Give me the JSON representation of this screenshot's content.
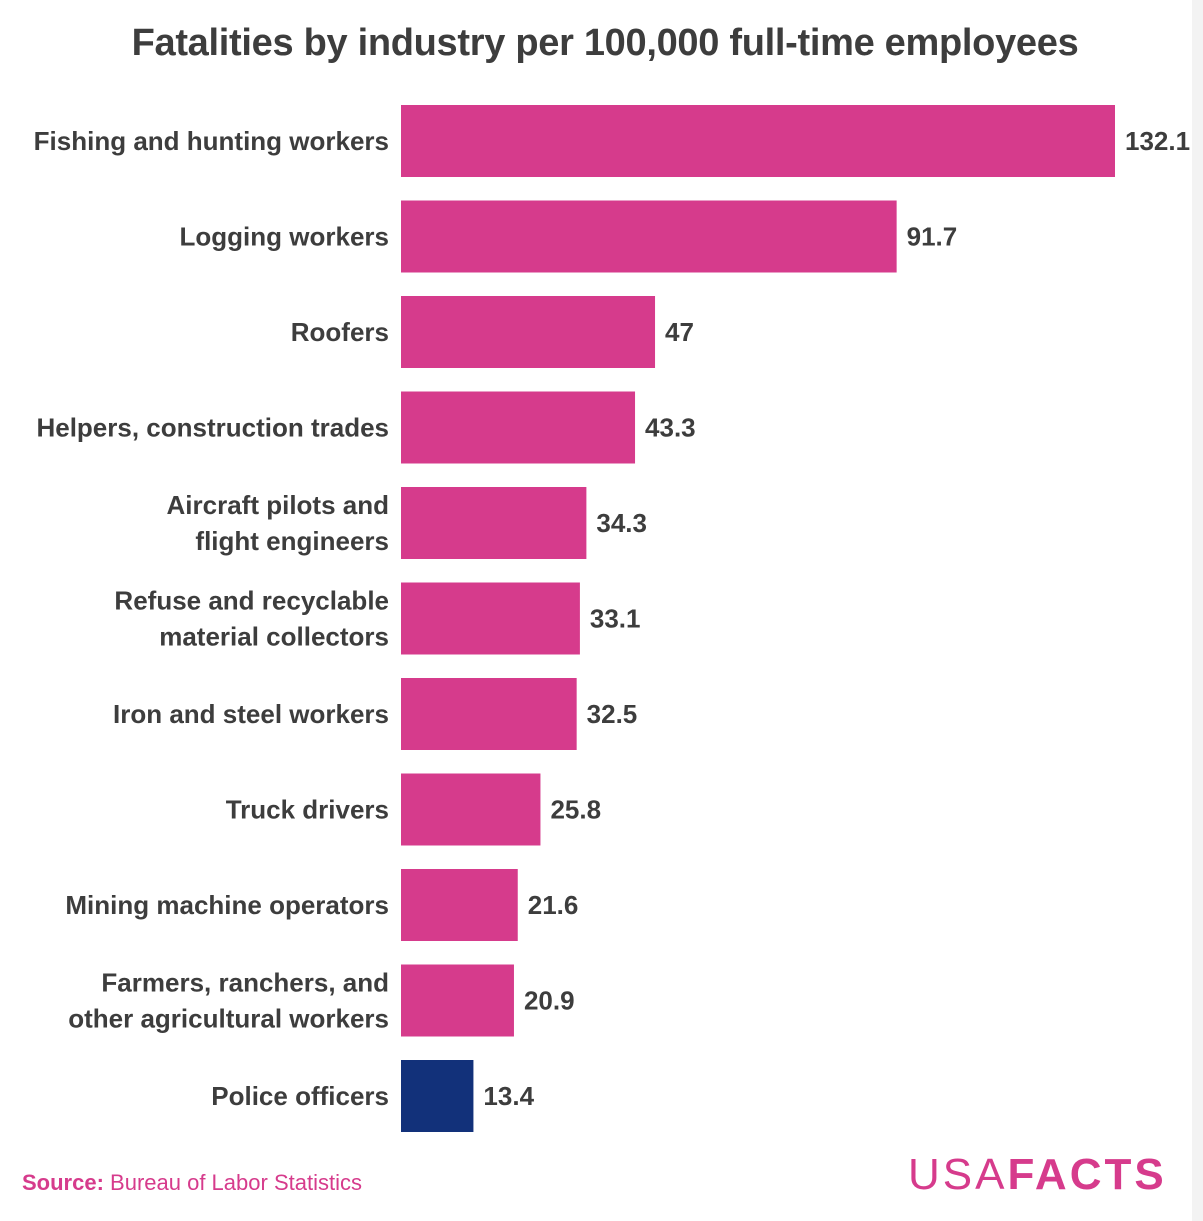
{
  "chart_data": {
    "type": "bar",
    "orientation": "horizontal",
    "title": "Fatalities by industry per 100,000 full-time employees",
    "categories": [
      [
        "Fishing and hunting workers"
      ],
      [
        "Logging workers"
      ],
      [
        "Roofers"
      ],
      [
        "Helpers, construction trades"
      ],
      [
        "Aircraft pilots and",
        "flight engineers"
      ],
      [
        "Refuse and recyclable",
        "material collectors"
      ],
      [
        "Iron and steel workers"
      ],
      [
        "Truck drivers"
      ],
      [
        "Mining machine operators"
      ],
      [
        "Farmers, ranchers, and",
        "other agricultural workers"
      ],
      [
        "Police officers"
      ]
    ],
    "values": [
      132.1,
      91.7,
      47,
      43.3,
      34.3,
      33.1,
      32.5,
      25.8,
      21.6,
      20.9,
      13.4
    ],
    "value_labels": [
      "132.1",
      "91.7",
      "47",
      "43.3",
      "34.3",
      "33.1",
      "32.5",
      "25.8",
      "21.6",
      "20.9",
      "13.4"
    ],
    "highlight_index": 10,
    "colors": {
      "default": "#d63b8c",
      "highlight": "#12317a"
    },
    "xlim": [
      0,
      132.1
    ],
    "grid": false
  },
  "source": {
    "label": "Source:",
    "text": "Bureau of Labor Statistics"
  },
  "logo": {
    "part1": "USA",
    "part2": "FACTS"
  }
}
